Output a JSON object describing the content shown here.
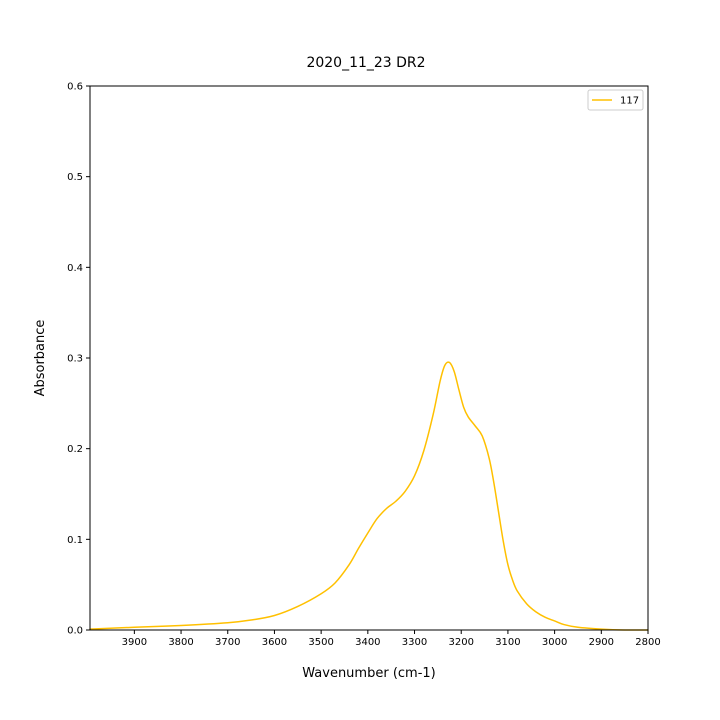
{
  "chart_data": {
    "type": "line",
    "title": "2020_11_23 DR2",
    "xlabel": "Wavenumber (cm-1)",
    "ylabel": "Absorbance",
    "xlim": [
      3995,
      2800
    ],
    "ylim": [
      0,
      0.6
    ],
    "x_inverted": true,
    "xticks": [
      3900,
      3800,
      3700,
      3600,
      3500,
      3400,
      3300,
      3200,
      3100,
      3000,
      2900,
      2800
    ],
    "yticks": [
      0.0,
      0.1,
      0.2,
      0.3,
      0.4,
      0.5,
      0.6
    ],
    "grid": false,
    "legend_position": "top-right",
    "series": [
      {
        "name": "117",
        "color": "#ffc000",
        "x": [
          3995,
          3900,
          3800,
          3700,
          3650,
          3600,
          3550,
          3500,
          3470,
          3440,
          3420,
          3400,
          3380,
          3360,
          3340,
          3320,
          3300,
          3280,
          3260,
          3245,
          3235,
          3225,
          3215,
          3205,
          3195,
          3185,
          3170,
          3155,
          3140,
          3130,
          3120,
          3110,
          3100,
          3090,
          3080,
          3060,
          3040,
          3020,
          3000,
          2980,
          2950,
          2900,
          2850,
          2800
        ],
        "y": [
          0.001,
          0.003,
          0.005,
          0.008,
          0.011,
          0.016,
          0.026,
          0.04,
          0.052,
          0.072,
          0.09,
          0.107,
          0.123,
          0.134,
          0.142,
          0.153,
          0.17,
          0.198,
          0.238,
          0.275,
          0.292,
          0.295,
          0.285,
          0.265,
          0.246,
          0.235,
          0.225,
          0.214,
          0.189,
          0.162,
          0.13,
          0.098,
          0.072,
          0.055,
          0.043,
          0.029,
          0.02,
          0.014,
          0.01,
          0.006,
          0.003,
          0.001,
          0.0,
          0.0
        ]
      }
    ]
  }
}
